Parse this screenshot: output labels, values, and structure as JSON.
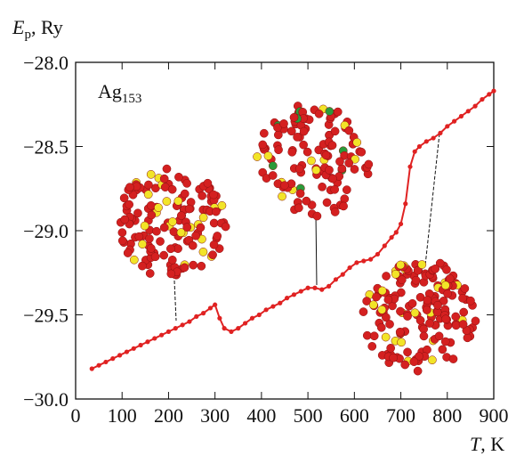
{
  "chart_data": {
    "type": "line",
    "y_label": {
      "main": "E",
      "sub": "p",
      "unit": ", Ry"
    },
    "x_label": {
      "main": "T",
      "unit": ", K"
    },
    "annotation": {
      "main": "Ag",
      "sub": "153"
    },
    "x": [
      35,
      50,
      65,
      80,
      95,
      110,
      125,
      140,
      155,
      170,
      185,
      200,
      215,
      230,
      245,
      260,
      275,
      290,
      300,
      310,
      320,
      335,
      350,
      365,
      380,
      395,
      410,
      425,
      440,
      455,
      470,
      485,
      500,
      515,
      530,
      545,
      560,
      575,
      590,
      605,
      620,
      635,
      650,
      665,
      680,
      690,
      700,
      710,
      720,
      730,
      740,
      755,
      770,
      785,
      800,
      815,
      830,
      845,
      860,
      875,
      890,
      900
    ],
    "series": [
      {
        "color": "#e02222",
        "values": [
          -29.82,
          -29.8,
          -29.78,
          -29.76,
          -29.74,
          -29.72,
          -29.7,
          -29.68,
          -29.66,
          -29.64,
          -29.62,
          -29.6,
          -29.58,
          -29.56,
          -29.54,
          -29.51,
          -29.49,
          -29.46,
          -29.44,
          -29.52,
          -29.58,
          -29.6,
          -29.58,
          -29.55,
          -29.52,
          -29.5,
          -29.47,
          -29.45,
          -29.43,
          -29.4,
          -29.38,
          -29.36,
          -29.34,
          -29.34,
          -29.35,
          -29.33,
          -29.29,
          -29.26,
          -29.22,
          -29.19,
          -29.18,
          -29.17,
          -29.14,
          -29.09,
          -29.04,
          -29.01,
          -28.96,
          -28.84,
          -28.62,
          -28.53,
          -28.5,
          -28.47,
          -28.45,
          -28.42,
          -28.38,
          -28.35,
          -28.32,
          -28.29,
          -28.26,
          -28.22,
          -28.19,
          -28.17
        ]
      }
    ],
    "xlim": [
      0,
      900
    ],
    "xticks": [
      0,
      100,
      200,
      300,
      400,
      500,
      600,
      700,
      800,
      900
    ],
    "ylim": [
      -30,
      -28
    ],
    "yticks": [
      {
        "value": -30,
        "label": "−30.0"
      },
      {
        "value": -29.5,
        "label": "−29.5"
      },
      {
        "value": -29,
        "label": "−29.0"
      },
      {
        "value": -28.5,
        "label": "−28.5"
      },
      {
        "value": -28,
        "label": "−28.0"
      }
    ]
  }
}
